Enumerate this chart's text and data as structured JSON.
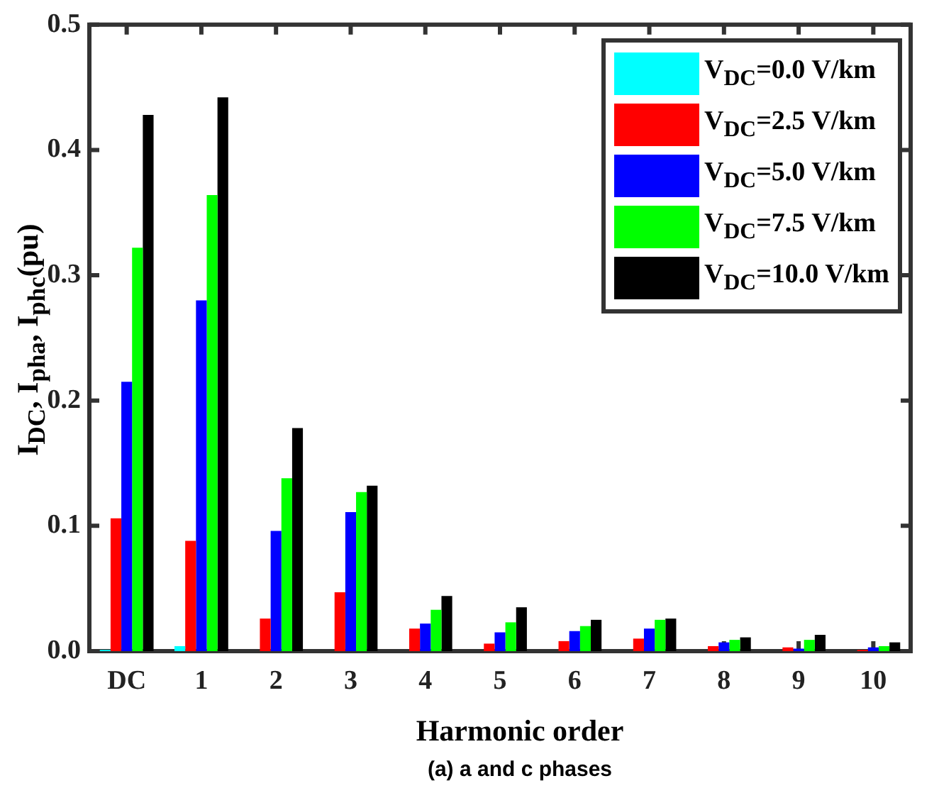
{
  "chart_data": {
    "type": "bar",
    "xlabel": "Harmonic order",
    "ylabel": "I$_{DC}$, I$_{pha}$, I$_{phc}$(pu)",
    "annotations": [
      "(a) a and c phases"
    ],
    "categories": [
      "DC",
      "1",
      "2",
      "3",
      "4",
      "5",
      "6",
      "7",
      "8",
      "9",
      "10"
    ],
    "series": [
      {
        "name": "V$_{DC}$=0.0 V/km",
        "color": "#00ffff",
        "values": [
          0.001,
          0.004,
          null,
          null,
          null,
          null,
          null,
          null,
          null,
          null,
          null
        ]
      },
      {
        "name": "V$_{DC}$=2.5 V/km",
        "color": "#ff0000",
        "values": [
          0.106,
          0.088,
          0.026,
          0.047,
          0.018,
          0.006,
          0.008,
          0.01,
          0.004,
          0.003,
          0.001
        ]
      },
      {
        "name": "V$_{DC}$=5.0 V/km",
        "color": "#0000ff",
        "values": [
          0.215,
          0.28,
          0.096,
          0.111,
          0.022,
          0.015,
          0.016,
          0.018,
          0.007,
          0.002,
          0.003
        ]
      },
      {
        "name": "V$_{DC}$=7.5 V/km",
        "color": "#00ff00",
        "values": [
          0.322,
          0.364,
          0.138,
          0.127,
          0.033,
          0.023,
          0.02,
          0.025,
          0.009,
          0.009,
          0.004
        ]
      },
      {
        "name": "V$_{DC}$=10.0 V/km",
        "color": "#000000",
        "values": [
          0.428,
          0.442,
          0.178,
          0.132,
          0.044,
          0.035,
          0.025,
          0.026,
          0.011,
          0.013,
          0.007
        ]
      }
    ],
    "ylim": [
      0,
      0.5
    ],
    "yticks": [
      {
        "value": 0,
        "label": "0.0"
      },
      0.1,
      0.2,
      0.3,
      0.4,
      0.5
    ],
    "grid": false,
    "legend": "top right"
  }
}
